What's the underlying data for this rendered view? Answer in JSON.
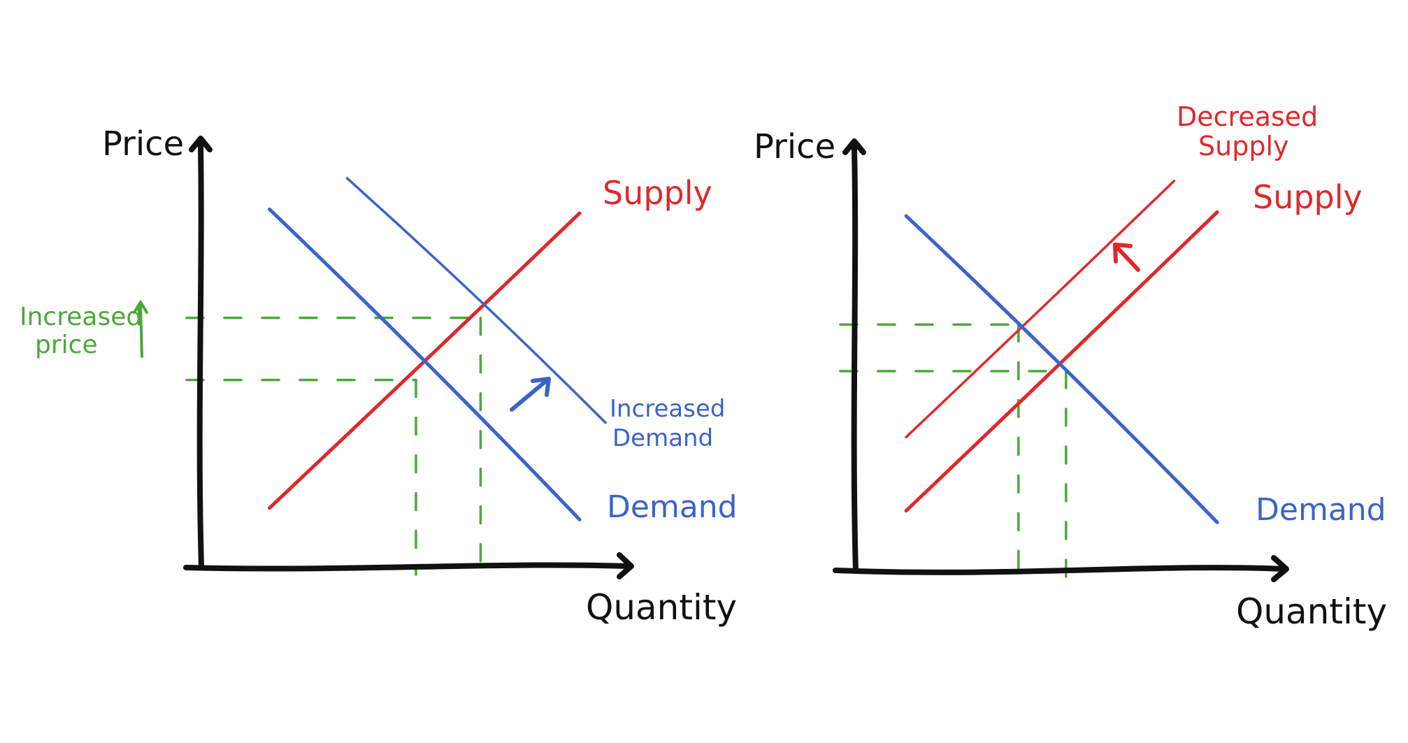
{
  "colors": {
    "axis": "#111111",
    "supply": "#e0282a",
    "demand": "#3b63c8",
    "guide": "#4aa83a"
  },
  "chart_data": [
    {
      "type": "line",
      "title": "",
      "xlabel": "Quantity",
      "ylabel": "Price",
      "xlim": [
        0,
        10
      ],
      "ylim": [
        0,
        10
      ],
      "grid": false,
      "series": [
        {
          "name": "Supply",
          "color": "#e0282a",
          "x": [
            1.6,
            8.8
          ],
          "y": [
            1.5,
            9.1
          ]
        },
        {
          "name": "Demand",
          "color": "#3b63c8",
          "x": [
            1.6,
            8.8
          ],
          "y": [
            9.2,
            1.2
          ]
        },
        {
          "name": "Increased Demand",
          "color": "#3b63c8",
          "x": [
            3.4,
            9.4
          ],
          "y": [
            10.0,
            3.7
          ]
        }
      ],
      "equilibria": [
        {
          "x": 5.0,
          "y": 4.8
        },
        {
          "x": 6.5,
          "y": 6.4
        }
      ],
      "annotations": [
        {
          "text_lines": [
            "Increased",
            "price"
          ],
          "color": "#4aa83a"
        },
        {
          "shift": "arrow",
          "color": "#3b63c8"
        }
      ]
    },
    {
      "type": "line",
      "title": "",
      "xlabel": "Quantity",
      "ylabel": "Price",
      "xlim": [
        0,
        10
      ],
      "ylim": [
        0,
        10
      ],
      "grid": false,
      "series": [
        {
          "name": "Supply",
          "color": "#e0282a",
          "x": [
            1.2,
            8.4
          ],
          "y": [
            1.5,
            9.2
          ]
        },
        {
          "name": "Decreased Supply",
          "color": "#e0282a",
          "x": [
            1.2,
            7.4
          ],
          "y": [
            3.4,
            10.0
          ]
        },
        {
          "name": "Demand",
          "color": "#3b63c8",
          "x": [
            1.2,
            8.4
          ],
          "y": [
            9.1,
            1.2
          ]
        }
      ],
      "equilibria": [
        {
          "x": 4.9,
          "y": 5.1
        },
        {
          "x": 3.8,
          "y": 6.3
        }
      ],
      "annotations": [
        {
          "shift": "arrow",
          "color": "#e0282a"
        }
      ]
    }
  ],
  "labels": {
    "left": {
      "price": "Price",
      "quantity": "Quantity",
      "supply": "Supply",
      "demand": "Demand",
      "increased_demand_1": "Increased",
      "increased_demand_2": "Demand",
      "increased_price_1": "Increased",
      "increased_price_2": "price"
    },
    "right": {
      "price": "Price",
      "quantity": "Quantity",
      "supply": "Supply",
      "demand": "Demand",
      "decreased_supply_1": "Decreased",
      "decreased_supply_2": "Supply"
    }
  }
}
